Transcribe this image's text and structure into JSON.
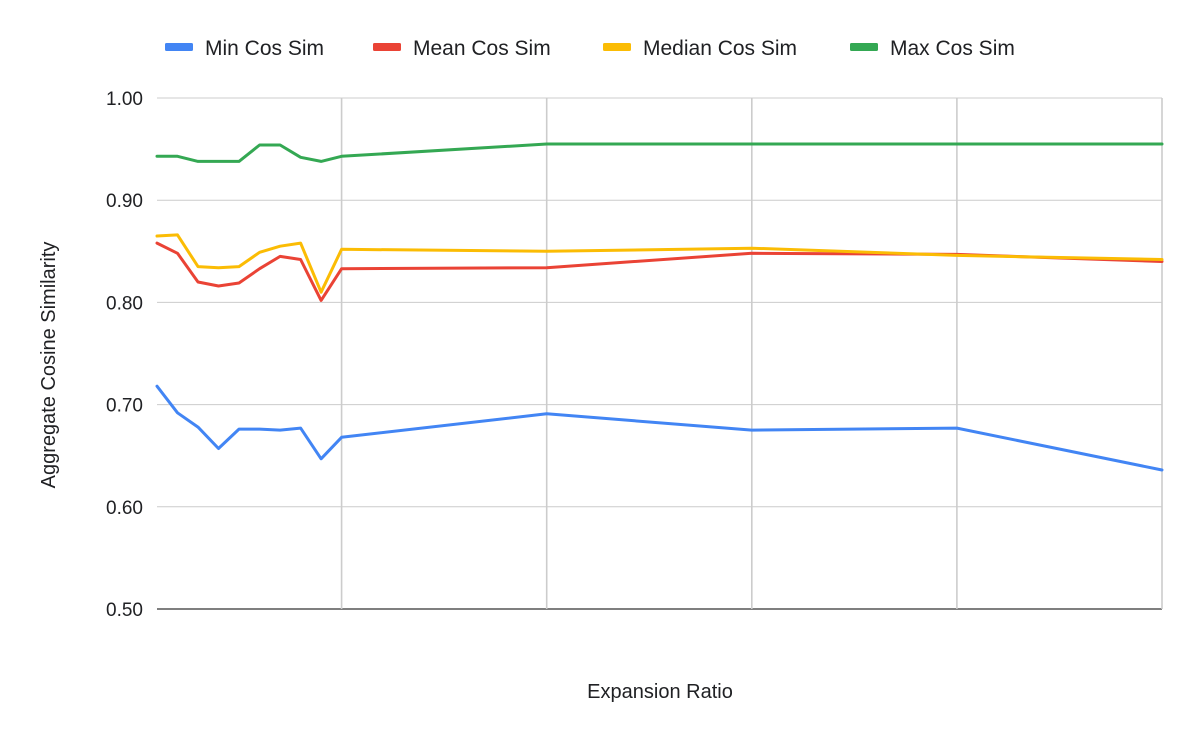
{
  "chart_data": {
    "type": "line",
    "title": "",
    "xlabel": "Expansion Ratio",
    "ylabel": "Aggregate Cosine Similarity",
    "ylim": [
      0.5,
      1.0
    ],
    "yticks": [
      "0.50",
      "0.60",
      "0.70",
      "0.80",
      "0.90",
      "1.00"
    ],
    "grid": true,
    "legend": "top",
    "series": [
      {
        "name": "Min Cos Sim",
        "color": "#4285F4",
        "points": [
          [
            0.0,
            0.718
          ],
          [
            0.2,
            0.692
          ],
          [
            0.4,
            0.678
          ],
          [
            0.6,
            0.657
          ],
          [
            0.8,
            0.676
          ],
          [
            1.0,
            0.676
          ],
          [
            1.2,
            0.675
          ],
          [
            1.4,
            0.677
          ],
          [
            1.6,
            0.647
          ],
          [
            1.8,
            0.668
          ],
          [
            3.8,
            0.691
          ],
          [
            5.8,
            0.675
          ],
          [
            7.8,
            0.677
          ],
          [
            9.8,
            0.636
          ]
        ]
      },
      {
        "name": "Mean Cos Sim",
        "color": "#EA4335",
        "points": [
          [
            0.0,
            0.858
          ],
          [
            0.2,
            0.848
          ],
          [
            0.4,
            0.82
          ],
          [
            0.6,
            0.816
          ],
          [
            0.8,
            0.819
          ],
          [
            1.0,
            0.833
          ],
          [
            1.2,
            0.845
          ],
          [
            1.4,
            0.842
          ],
          [
            1.6,
            0.802
          ],
          [
            1.8,
            0.833
          ],
          [
            3.8,
            0.834
          ],
          [
            5.8,
            0.848
          ],
          [
            7.8,
            0.847
          ],
          [
            9.8,
            0.84
          ]
        ]
      },
      {
        "name": "Median Cos Sim",
        "color": "#FBBC04",
        "points": [
          [
            0.0,
            0.865
          ],
          [
            0.2,
            0.866
          ],
          [
            0.4,
            0.835
          ],
          [
            0.6,
            0.834
          ],
          [
            0.8,
            0.835
          ],
          [
            1.0,
            0.849
          ],
          [
            1.2,
            0.855
          ],
          [
            1.4,
            0.858
          ],
          [
            1.6,
            0.81
          ],
          [
            1.8,
            0.852
          ],
          [
            3.8,
            0.85
          ],
          [
            5.8,
            0.853
          ],
          [
            7.8,
            0.846
          ],
          [
            9.8,
            0.842
          ]
        ]
      },
      {
        "name": "Max Cos Sim",
        "color": "#34A853",
        "points": [
          [
            0.0,
            0.943
          ],
          [
            0.2,
            0.943
          ],
          [
            0.4,
            0.938
          ],
          [
            0.6,
            0.938
          ],
          [
            0.8,
            0.938
          ],
          [
            1.0,
            0.954
          ],
          [
            1.2,
            0.954
          ],
          [
            1.4,
            0.942
          ],
          [
            1.6,
            0.938
          ],
          [
            1.8,
            0.943
          ],
          [
            3.8,
            0.955
          ],
          [
            5.8,
            0.955
          ],
          [
            7.8,
            0.955
          ],
          [
            9.8,
            0.955
          ]
        ]
      }
    ]
  }
}
